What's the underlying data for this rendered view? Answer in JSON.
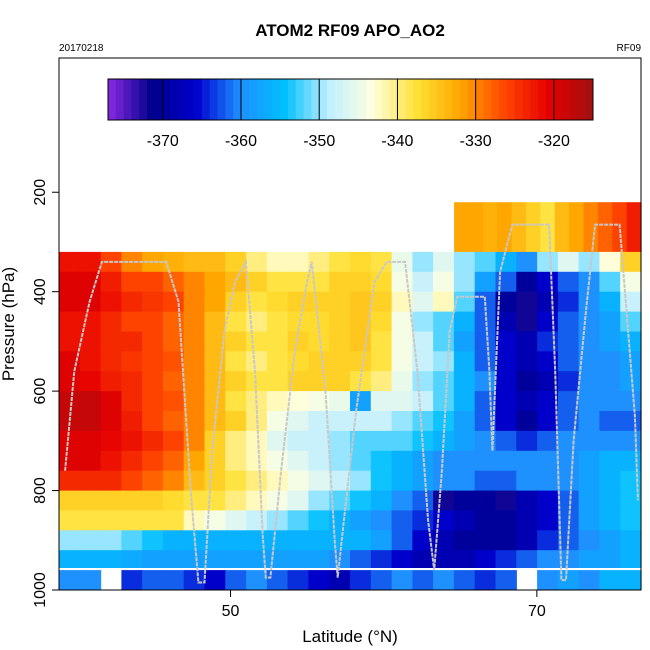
{
  "chart_data": {
    "type": "heatmap",
    "title": "ATOM2 RF09 APO_AO2",
    "date_label": "20170218",
    "flight_label": "RF09",
    "xlabel": "Latitude (°N)",
    "ylabel": "Pressure (hPa)",
    "xlim": [
      38.8,
      76.8
    ],
    "ylim": [
      1000,
      -70
    ],
    "y_reversed": true,
    "x_ticks": [
      "50",
      "70"
    ],
    "x_tick_values": [
      50,
      70
    ],
    "y_ticks": [
      "200",
      "400",
      "600",
      "800",
      "1000"
    ],
    "y_tick_values": [
      200,
      400,
      600,
      800,
      1000
    ],
    "colorbar": {
      "range": [
        -377,
        -315
      ],
      "ticks": [
        "-370",
        "-360",
        "-350",
        "-340",
        "-330",
        "-320"
      ],
      "tick_values": [
        -370,
        -360,
        -350,
        -340,
        -330,
        -320
      ],
      "colors": [
        "#8a2be2",
        "#00008b",
        "#0000cd",
        "#1e90ff",
        "#00bfff",
        "#bfefff",
        "#ffffe0",
        "#ffe135",
        "#ffa500",
        "#ff4500",
        "#e60000",
        "#a01010"
      ]
    },
    "grid": false,
    "legend": "colorbar-top",
    "rows": [
      {
        "p_top": 220,
        "p_bottom": 320,
        "x0": 64.6,
        "x1": 76.8,
        "values": [
          -332,
          -332,
          -333,
          -332,
          -334,
          -336,
          -338,
          -334,
          -332,
          -330,
          -328,
          -326,
          -323
        ]
      },
      {
        "p_top": 320,
        "p_bottom": 360,
        "x0": 38.8,
        "x1": 76.8,
        "values": [
          -322,
          -322,
          -326,
          -330,
          -332,
          -333,
          -334,
          -334,
          -336,
          -340,
          -342,
          -342,
          -340,
          -338,
          -337,
          -338,
          -345,
          -350,
          -346,
          -350,
          -352,
          -356,
          -360,
          -350,
          -346,
          -350,
          -343,
          -336
        ]
      },
      {
        "p_top": 360,
        "p_bottom": 400,
        "x0": 38.8,
        "x1": 76.8,
        "values": [
          -320,
          -320,
          -323,
          -326,
          -326,
          -328,
          -330,
          -332,
          -334,
          -336,
          -338,
          -338,
          -338,
          -336,
          -336,
          -337,
          -344,
          -348,
          -344,
          -350,
          -358,
          -362,
          -370,
          -366,
          -362,
          -360,
          -352,
          -344
        ]
      },
      {
        "p_top": 400,
        "p_bottom": 440,
        "x0": 38.8,
        "x1": 76.8,
        "values": [
          -320,
          -320,
          -322,
          -324,
          -325,
          -326,
          -330,
          -332,
          -336,
          -338,
          -337,
          -336,
          -336,
          -336,
          -335,
          -336,
          -342,
          -346,
          -342,
          -352,
          -362,
          -370,
          -372,
          -368,
          -364,
          -360,
          -356,
          -348
        ]
      },
      {
        "p_top": 440,
        "p_bottom": 480,
        "x0": 38.8,
        "x1": 76.8,
        "values": [
          -322,
          -322,
          -324,
          -326,
          -326,
          -328,
          -330,
          -334,
          -338,
          -340,
          -338,
          -337,
          -337,
          -336,
          -335,
          -337,
          -344,
          -350,
          -352,
          -356,
          -362,
          -368,
          -372,
          -366,
          -362,
          -360,
          -358,
          -352
        ]
      },
      {
        "p_top": 480,
        "p_bottom": 520,
        "x0": 38.8,
        "x1": 76.8,
        "values": [
          -322,
          -322,
          -324,
          -324,
          -326,
          -328,
          -330,
          -334,
          -336,
          -338,
          -338,
          -336,
          -337,
          -336,
          -335,
          -338,
          -344,
          -348,
          -352,
          -358,
          -362,
          -366,
          -368,
          -364,
          -362,
          -360,
          -358,
          -356
        ]
      },
      {
        "p_top": 520,
        "p_bottom": 560,
        "x0": 38.8,
        "x1": 76.8,
        "values": [
          -320,
          -322,
          -324,
          -325,
          -326,
          -327,
          -330,
          -334,
          -338,
          -340,
          -338,
          -337,
          -336,
          -336,
          -336,
          -338,
          -344,
          -348,
          -350,
          -356,
          -362,
          -366,
          -368,
          -366,
          -362,
          -360,
          -360,
          -358
        ]
      },
      {
        "p_top": 560,
        "p_bottom": 600,
        "x0": 38.8,
        "x1": 76.8,
        "values": [
          -320,
          -321,
          -323,
          -324,
          -326,
          -328,
          -330,
          -334,
          -336,
          -338,
          -338,
          -336,
          -336,
          -336,
          -338,
          -340,
          -345,
          -350,
          -352,
          -356,
          -360,
          -366,
          -370,
          -368,
          -364,
          -360,
          -360,
          -358
        ]
      },
      {
        "p_top": 600,
        "p_bottom": 640,
        "x0": 38.8,
        "x1": 76.8,
        "values": [
          -318,
          -318,
          -320,
          -324,
          -326,
          -327,
          -330,
          -334,
          -338,
          -340,
          -342,
          -343,
          -344,
          -345,
          -358,
          -346,
          -346,
          -348,
          -352,
          -356,
          -362,
          -366,
          -368,
          -366,
          -362,
          -360,
          -360,
          -360
        ]
      },
      {
        "p_top": 640,
        "p_bottom": 680,
        "x0": 38.8,
        "x1": 76.8,
        "values": [
          -318,
          -318,
          -320,
          -323,
          -326,
          -328,
          -330,
          -334,
          -336,
          -340,
          -344,
          -346,
          -348,
          -348,
          -348,
          -348,
          -350,
          -352,
          -354,
          -358,
          -362,
          -366,
          -370,
          -366,
          -362,
          -360,
          -362,
          -362
        ]
      },
      {
        "p_top": 680,
        "p_bottom": 720,
        "x0": 38.8,
        "x1": 76.8,
        "values": [
          -320,
          -320,
          -321,
          -322,
          -324,
          -326,
          -330,
          -336,
          -340,
          -342,
          -346,
          -348,
          -348,
          -350,
          -352,
          -352,
          -352,
          -354,
          -356,
          -358,
          -360,
          -362,
          -364,
          -362,
          -360,
          -360,
          -360,
          -360
        ]
      },
      {
        "p_top": 720,
        "p_bottom": 760,
        "x0": 38.8,
        "x1": 76.8,
        "values": [
          -320,
          -320,
          -322,
          -324,
          -326,
          -328,
          -332,
          -336,
          -340,
          -342,
          -344,
          -346,
          -348,
          -350,
          -352,
          -354,
          -356,
          -358,
          -360,
          -360,
          -360,
          -360,
          -360,
          -360,
          -360,
          -358,
          -356,
          -356
        ]
      },
      {
        "p_top": 760,
        "p_bottom": 800,
        "x0": 38.8,
        "x1": 76.8,
        "values": [
          -324,
          -324,
          -324,
          -326,
          -328,
          -330,
          -334,
          -336,
          -338,
          -340,
          -342,
          -344,
          -346,
          -348,
          -350,
          -354,
          -356,
          -358,
          -360,
          -360,
          -362,
          -362,
          -360,
          -360,
          -360,
          -358,
          -356,
          -354
        ]
      },
      {
        "p_top": 800,
        "p_bottom": 840,
        "x0": 38.8,
        "x1": 76.8,
        "values": [
          -336,
          -336,
          -336,
          -336,
          -336,
          -337,
          -338,
          -338,
          -340,
          -342,
          -344,
          -346,
          -350,
          -352,
          -354,
          -356,
          -360,
          -362,
          -372,
          -370,
          -370,
          -372,
          -368,
          -366,
          -362,
          -358,
          -356,
          -354
        ]
      },
      {
        "p_top": 840,
        "p_bottom": 880,
        "x0": 38.8,
        "x1": 76.8,
        "values": [
          -338,
          -338,
          -338,
          -338,
          -338,
          -338,
          -342,
          -344,
          -346,
          -348,
          -350,
          -352,
          -354,
          -356,
          -358,
          -360,
          -362,
          -364,
          -366,
          -368,
          -370,
          -370,
          -368,
          -366,
          -362,
          -358,
          -356,
          -354
        ]
      },
      {
        "p_top": 880,
        "p_bottom": 920,
        "x0": 38.8,
        "x1": 76.8,
        "values": [
          -350,
          -350,
          -350,
          -352,
          -354,
          -356,
          -356,
          -356,
          -356,
          -356,
          -356,
          -356,
          -356,
          -356,
          -356,
          -358,
          -362,
          -366,
          -368,
          -370,
          -370,
          -370,
          -368,
          -364,
          -362,
          -360,
          -358,
          -356
        ]
      },
      {
        "p_top": 920,
        "p_bottom": 955,
        "x0": 38.8,
        "x1": 76.8,
        "values": [
          -356,
          -356,
          -356,
          -357,
          -358,
          -358,
          -358,
          -358,
          -358,
          -358,
          -358,
          -358,
          -358,
          -360,
          -362,
          -364,
          -366,
          -368,
          -368,
          -368,
          -366,
          -364,
          -362,
          -360,
          -360,
          -358,
          -358,
          -356
        ]
      },
      {
        "p_top": 960,
        "p_bottom": 1000,
        "x0": 38.8,
        "x1": 76.8,
        "values": [
          -360,
          -360,
          null,
          -364,
          -362,
          -362,
          -364,
          -366,
          -362,
          -360,
          -362,
          -364,
          -366,
          -368,
          -364,
          -362,
          -360,
          -362,
          -360,
          -362,
          -364,
          -362,
          null,
          -360,
          -358,
          -360,
          -356,
          -356
        ]
      }
    ],
    "flight_track": [
      [
        39.2,
        760
      ],
      [
        39.8,
        560
      ],
      [
        40.8,
        420
      ],
      [
        41.6,
        340
      ],
      [
        44.5,
        340
      ],
      [
        45.8,
        340
      ],
      [
        46.6,
        420
      ],
      [
        47.4,
        800
      ],
      [
        47.9,
        985
      ],
      [
        48.3,
        985
      ],
      [
        48.8,
        720
      ],
      [
        49.6,
        480
      ],
      [
        50.3,
        380
      ],
      [
        51.0,
        340
      ],
      [
        51.6,
        560
      ],
      [
        52.1,
        890
      ],
      [
        52.3,
        975
      ],
      [
        52.6,
        975
      ],
      [
        53.3,
        760
      ],
      [
        54.2,
        520
      ],
      [
        55.0,
        380
      ],
      [
        55.3,
        340
      ],
      [
        56.2,
        600
      ],
      [
        56.8,
        900
      ],
      [
        57.0,
        975
      ],
      [
        57.4,
        860
      ],
      [
        58.2,
        640
      ],
      [
        59.4,
        380
      ],
      [
        60.2,
        340
      ],
      [
        61.4,
        340
      ],
      [
        62.2,
        560
      ],
      [
        62.9,
        860
      ],
      [
        63.3,
        960
      ],
      [
        63.8,
        760
      ],
      [
        64.3,
        480
      ],
      [
        64.8,
        410
      ],
      [
        65.6,
        410
      ],
      [
        66.6,
        410
      ],
      [
        66.9,
        560
      ],
      [
        67.1,
        720
      ],
      [
        67.6,
        360
      ],
      [
        68.4,
        265
      ],
      [
        70.0,
        265
      ],
      [
        70.8,
        265
      ],
      [
        71.2,
        560
      ],
      [
        71.6,
        980
      ],
      [
        71.9,
        980
      ],
      [
        72.4,
        700
      ],
      [
        73.2,
        440
      ],
      [
        73.8,
        265
      ],
      [
        75.4,
        265
      ],
      [
        76.4,
        650
      ],
      [
        76.6,
        820
      ]
    ]
  }
}
